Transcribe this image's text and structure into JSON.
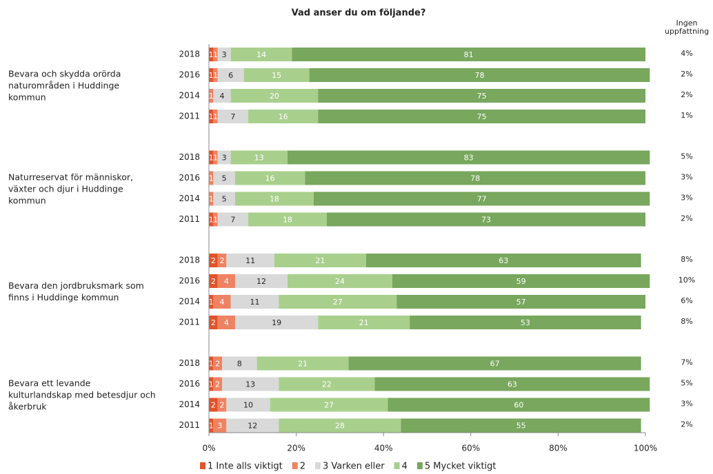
{
  "chart_data": {
    "type": "stacked-bar-horizontal",
    "title": "Vad anser du om följande?",
    "groups": [
      "Bevara och skydda orörda naturområden i Huddinge kommun",
      "Naturreservat för människor, växter och djur i Huddinge kommun",
      "Bevara den jordbruksmark som finns i Huddinge kommun",
      "Bevara ett levande kulturlandskap med betesdjur och åkerbruk"
    ],
    "categories": [
      "2018",
      "2016",
      "2014",
      "2011",
      "2018",
      "2016",
      "2014",
      "2011",
      "2018",
      "2016",
      "2014",
      "2011",
      "2018",
      "2016",
      "2014",
      "2011"
    ],
    "series": [
      {
        "name": "1 Inte alls viktigt",
        "color": "#e0542c",
        "values": [
          1,
          1,
          0,
          1,
          1,
          0,
          0,
          1,
          2,
          2,
          1,
          2,
          1,
          1,
          2,
          1
        ]
      },
      {
        "name": "2",
        "color": "#ee8363",
        "values": [
          1,
          1,
          1,
          1,
          1,
          1,
          1,
          1,
          2,
          4,
          4,
          4,
          2,
          2,
          2,
          3
        ]
      },
      {
        "name": "3 Varken eller",
        "color": "#d9d9d9",
        "values": [
          3,
          6,
          4,
          7,
          3,
          5,
          5,
          7,
          11,
          12,
          11,
          19,
          8,
          13,
          10,
          12
        ]
      },
      {
        "name": "4",
        "color": "#a9cf8d",
        "values": [
          14,
          15,
          20,
          16,
          13,
          16,
          18,
          18,
          21,
          24,
          27,
          21,
          21,
          22,
          27,
          28
        ]
      },
      {
        "name": "5 Mycket viktigt",
        "color": "#78a75d",
        "values": [
          81,
          78,
          75,
          75,
          83,
          78,
          77,
          73,
          63,
          59,
          57,
          53,
          67,
          63,
          60,
          55
        ]
      }
    ],
    "no_opinion": {
      "title": "Ingen uppfattning",
      "values": [
        4,
        2,
        2,
        1,
        5,
        3,
        3,
        2,
        8,
        10,
        6,
        8,
        7,
        5,
        3,
        2
      ],
      "value_labels": [
        "4%",
        "2%",
        "2%",
        "1%",
        "5%",
        "3%",
        "3%",
        "2%",
        "8%",
        "10%",
        "6%",
        "8%",
        "7%",
        "5%",
        "3%",
        "2%"
      ]
    },
    "xlim": [
      0,
      100
    ],
    "xticks": [
      {
        "value": 0,
        "label": "0%"
      },
      {
        "value": 20,
        "label": "20%"
      },
      {
        "value": 40,
        "label": "40%"
      },
      {
        "value": 60,
        "label": "60%"
      },
      {
        "value": 80,
        "label": "80%"
      },
      {
        "value": 100,
        "label": "100%"
      }
    ],
    "legend": "bottom"
  }
}
